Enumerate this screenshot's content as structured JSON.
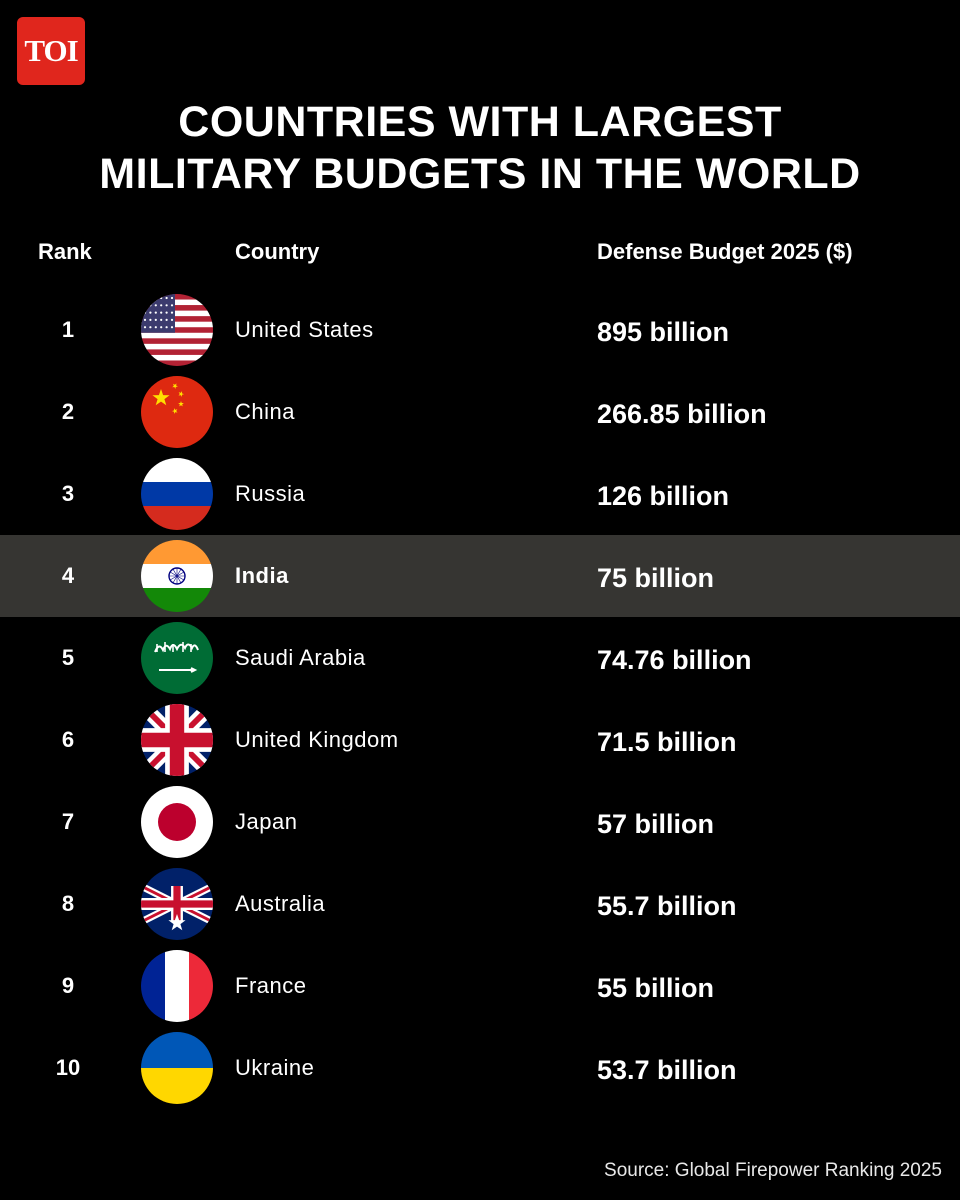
{
  "logo": "TOI",
  "title_line1": "COUNTRIES WITH LARGEST",
  "title_line2": "MILITARY BUDGETS IN THE WORLD",
  "headers": {
    "rank": "Rank",
    "country": "Country",
    "budget": "Defense Budget 2025 ($)"
  },
  "source": "Source: Global Firepower Ranking 2025",
  "highlight_color": "#363532",
  "chart_data": {
    "type": "table",
    "title": "COUNTRIES WITH LARGEST MILITARY BUDGETS IN THE WORLD",
    "columns": [
      "Rank",
      "Country",
      "Defense Budget 2025 ($)"
    ],
    "rows": [
      {
        "rank": "1",
        "country": "United States",
        "budget": "895 billion",
        "flag": "us-flag-icon"
      },
      {
        "rank": "2",
        "country": "China",
        "budget": "266.85 billion",
        "flag": "china-flag-icon"
      },
      {
        "rank": "3",
        "country": "Russia",
        "budget": "126 billion",
        "flag": "russia-flag-icon"
      },
      {
        "rank": "4",
        "country": "India",
        "budget": "75 billion",
        "flag": "india-flag-icon",
        "highlight": true
      },
      {
        "rank": "5",
        "country": "Saudi Arabia",
        "budget": "74.76 billion",
        "flag": "saudi-arabia-flag-icon"
      },
      {
        "rank": "6",
        "country": "United Kingdom",
        "budget": "71.5 billion",
        "flag": "uk-flag-icon"
      },
      {
        "rank": "7",
        "country": "Japan",
        "budget": "57 billion",
        "flag": "japan-flag-icon"
      },
      {
        "rank": "8",
        "country": "Australia",
        "budget": "55.7 billion",
        "flag": "australia-flag-icon"
      },
      {
        "rank": "9",
        "country": "France",
        "budget": "55 billion",
        "flag": "france-flag-icon"
      },
      {
        "rank": "10",
        "country": "Ukraine",
        "budget": "53.7 billion",
        "flag": "ukraine-flag-icon"
      }
    ]
  }
}
